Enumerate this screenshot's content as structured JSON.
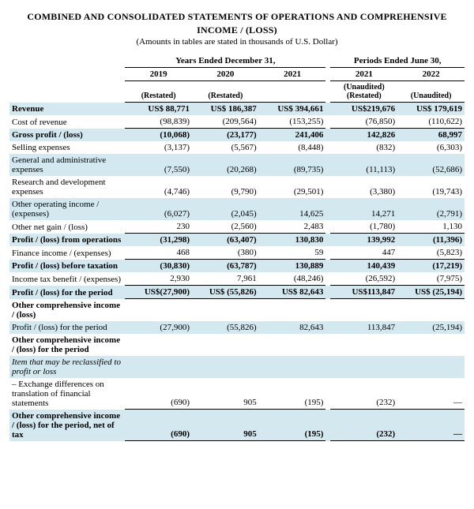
{
  "title_line1": "COMBINED AND CONSOLIDATED STATEMENTS OF OPERATIONS AND COMPREHENSIVE",
  "title_line2": "INCOME / (LOSS)",
  "subtitle": "(Amounts in tables are stated in thousands of U.S. Dollar)",
  "group_headers": {
    "left": "Years Ended December 31,",
    "right": "Periods Ended June 30,"
  },
  "years": [
    "2019",
    "2020",
    "2021",
    "2021",
    "2022"
  ],
  "sub_headers": [
    "(Restated)",
    "(Restated)",
    "",
    "(Unaudited) (Restated)",
    "(Unaudited)"
  ],
  "rows": [
    {
      "label": "Revenue",
      "bold": true,
      "shade": true,
      "vals": [
        "US$  88,771",
        "US$  186,387",
        "US$  394,661",
        "US$219,676",
        "US$  179,619"
      ]
    },
    {
      "label": "Cost of revenue",
      "vals": [
        "(98,839)",
        "(209,564)",
        "(153,255)",
        "(76,850)",
        "(110,622)"
      ],
      "ul": true
    },
    {
      "label": "Gross profit / (loss)",
      "bold": true,
      "shade": true,
      "vals": [
        "(10,068)",
        "(23,177)",
        "241,406",
        "142,826",
        "68,997"
      ]
    },
    {
      "label": "Selling expenses",
      "vals": [
        "(3,137)",
        "(5,567)",
        "(8,448)",
        "(832)",
        "(6,303)"
      ]
    },
    {
      "label": "General and administrative expenses",
      "shade": true,
      "vals": [
        "(7,550)",
        "(20,268)",
        "(89,735)",
        "(11,113)",
        "(52,686)"
      ]
    },
    {
      "label": "Research and development expenses",
      "vals": [
        "(4,746)",
        "(9,790)",
        "(29,501)",
        "(3,380)",
        "(19,743)"
      ]
    },
    {
      "label": "Other operating income / (expenses)",
      "shade": true,
      "vals": [
        "(6,027)",
        "(2,045)",
        "14,625",
        "14,271",
        "(2,791)"
      ]
    },
    {
      "label": "Other net gain / (loss)",
      "vals": [
        "230",
        "(2,560)",
        "2,483",
        "(1,780)",
        "1,130"
      ],
      "ul": true
    },
    {
      "label": "Profit / (loss) from operations",
      "bold": true,
      "shade": true,
      "vals": [
        "(31,298)",
        "(63,407)",
        "130,830",
        "139,992",
        "(11,396)"
      ]
    },
    {
      "label": "Finance income / (expenses)",
      "vals": [
        "468",
        "(380)",
        "59",
        "447",
        "(5,823)"
      ],
      "ul": true
    },
    {
      "label": "Profit / (loss) before taxation",
      "bold": true,
      "shade": true,
      "vals": [
        "(30,830)",
        "(63,787)",
        "130,889",
        "140,439",
        "(17,219)"
      ]
    },
    {
      "label": "Income tax benefit / (expenses)",
      "vals": [
        "2,930",
        "7,961",
        "(48,246)",
        "(26,592)",
        "(7,975)"
      ],
      "ul": true
    },
    {
      "label": "Profit / (loss) for the period",
      "bold": true,
      "shade": true,
      "vals": [
        "US$(27,900)",
        "US$  (55,826)",
        "US$    82,643",
        "US$113,847",
        "US$  (25,194)"
      ],
      "ul": true
    },
    {
      "label": "Other comprehensive income / (loss)",
      "bold": true,
      "vals": [
        "",
        "",
        "",
        "",
        ""
      ]
    },
    {
      "label": "Profit / (loss) for the period",
      "shade": true,
      "vals": [
        "(27,900)",
        "(55,826)",
        "82,643",
        "113,847",
        "(25,194)"
      ]
    },
    {
      "label": "Other comprehensive income / (loss) for the period",
      "bold": true,
      "vals": [
        "",
        "",
        "",
        "",
        ""
      ]
    },
    {
      "label": "Item that may be reclassified to profit or loss",
      "italic": true,
      "shade": true,
      "vals": [
        "",
        "",
        "",
        "",
        ""
      ]
    },
    {
      "label": "– Exchange differences on translation of financial statements",
      "vals": [
        "(690)",
        "905",
        "(195)",
        "(232)",
        "—"
      ],
      "ul": true
    },
    {
      "label": "Other comprehensive income / (loss) for the period, net of tax",
      "bold": true,
      "shade": true,
      "vals": [
        "(690)",
        "905",
        "(195)",
        "(232)",
        "—"
      ],
      "ul": true
    }
  ]
}
